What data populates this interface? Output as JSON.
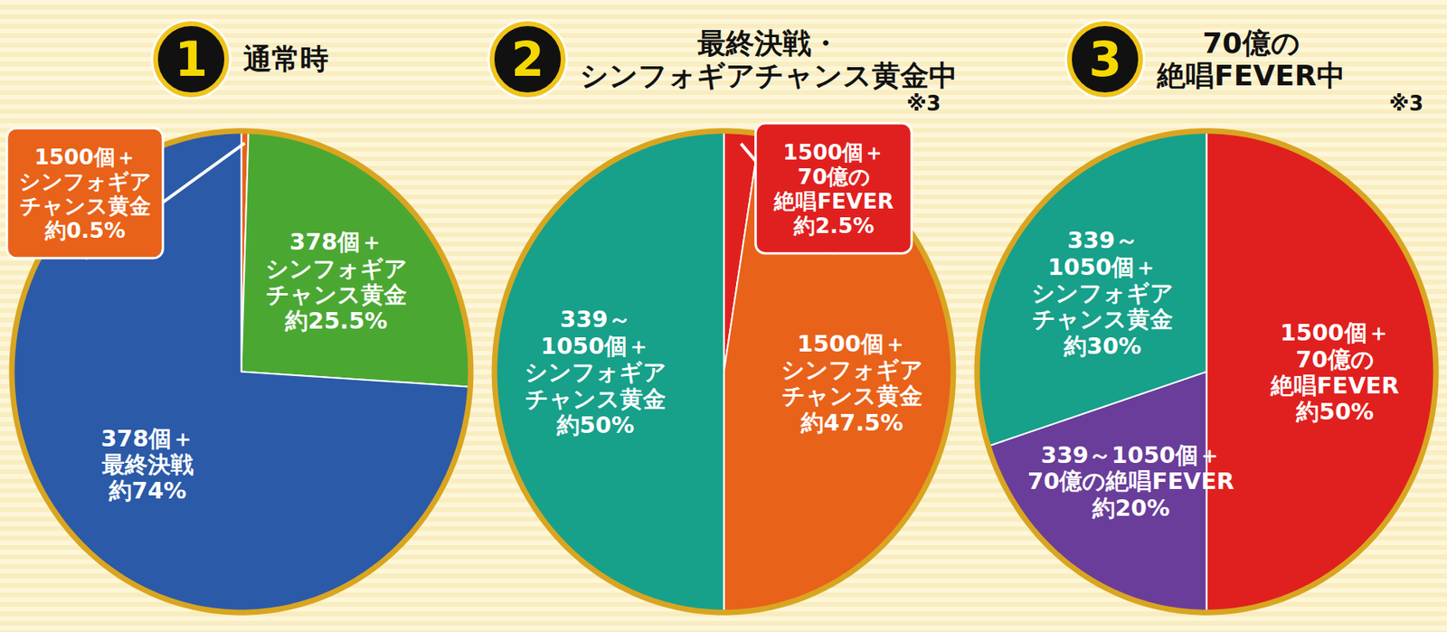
{
  "chart_data": [
    {
      "type": "pie",
      "badge": "1",
      "title": "通常時",
      "categories": [
        "1500個＋\nシンフォギア\nチャンス黄金",
        "378個＋\nシンフォギア\nチャンス黄金",
        "378個＋\n最終決戦"
      ],
      "values": [
        0.5,
        25.5,
        74
      ],
      "value_labels": [
        "約0.5%",
        "約25.5%",
        "約74%"
      ],
      "colors": [
        "#e8621a",
        "#4aa832",
        "#2b5aa8"
      ],
      "data_labels": true
    },
    {
      "type": "pie",
      "badge": "2",
      "title": "最終決戦・\nシンフォギアチャンス黄金中",
      "note": "※3",
      "categories": [
        "1500個＋\n70億の\n絶唱FEVER",
        "1500個＋\nシンフォギア\nチャンス黄金",
        "339～\n1050個＋\nシンフォギア\nチャンス黄金"
      ],
      "values": [
        2.5,
        47.5,
        50
      ],
      "value_labels": [
        "約2.5%",
        "約47.5%",
        "約50%"
      ],
      "colors": [
        "#e0201f",
        "#e8621a",
        "#17a08a"
      ],
      "data_labels": true
    },
    {
      "type": "pie",
      "badge": "3",
      "title": "70億の\n絶唱FEVER中",
      "note": "※3",
      "categories": [
        "1500個＋\n70億の\n絶唱FEVER",
        "339～1050個＋\n70億の絶唱FEVER",
        "339～\n1050個＋\nシンフォギア\nチャンス黄金"
      ],
      "values": [
        50,
        20,
        30
      ],
      "value_labels": [
        "約50%",
        "約20%",
        "約30%"
      ],
      "colors": [
        "#e0201f",
        "#6a3d9a",
        "#17a08a"
      ],
      "data_labels": true
    }
  ]
}
